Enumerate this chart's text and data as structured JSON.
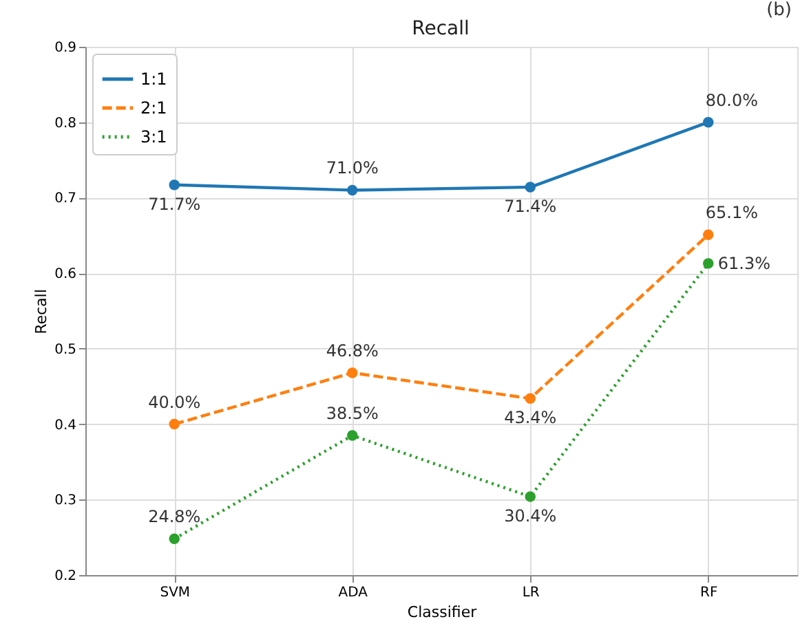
{
  "chart_data": {
    "type": "line",
    "title": "Recall",
    "xlabel": "Classifier",
    "ylabel": "Recall",
    "categories": [
      "SVM",
      "ADA",
      "LR",
      "RF"
    ],
    "series": [
      {
        "name": "1:1",
        "color": "#1f77b4",
        "line_style": "solid",
        "values": [
          0.717,
          0.71,
          0.714,
          0.8
        ],
        "value_labels": [
          "71.7%",
          "71.0%",
          "71.4%",
          "80.0%"
        ]
      },
      {
        "name": "2:1",
        "color": "#ff7f0e",
        "line_style": "dashed",
        "values": [
          0.4,
          0.468,
          0.434,
          0.651
        ],
        "value_labels": [
          "40.0%",
          "46.8%",
          "43.4%",
          "65.1%"
        ]
      },
      {
        "name": "3:1",
        "color": "#2ca02c",
        "line_style": "dotted",
        "values": [
          0.248,
          0.385,
          0.304,
          0.613
        ],
        "value_labels": [
          "24.8%",
          "38.5%",
          "30.4%",
          "61.3%"
        ]
      }
    ],
    "ylim": [
      0.2,
      0.9
    ],
    "yticks": [
      0.2,
      0.3,
      0.4,
      0.5,
      0.6,
      0.7,
      0.8,
      0.9
    ],
    "grid": true,
    "legend": "top left",
    "marker": "circle",
    "annotations": [
      "(b)"
    ]
  }
}
